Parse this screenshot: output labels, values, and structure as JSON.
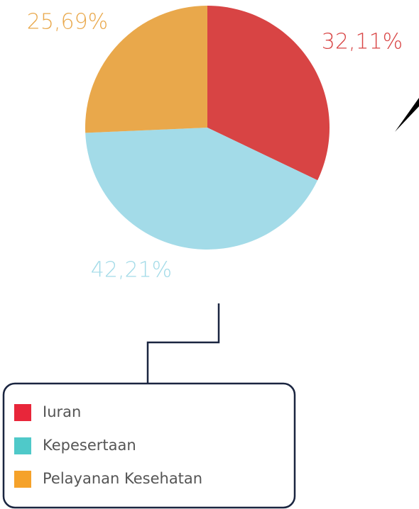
{
  "chart_data": {
    "type": "pie",
    "categories": [
      "Iuran",
      "Kepesertaan",
      "Pelayanan Kesehatan"
    ],
    "values": [
      32.11,
      42.21,
      25.69
    ],
    "value_labels": [
      "32,11%",
      "42,21%",
      "25,69%"
    ],
    "colors": [
      "#d84444",
      "#a3dbe8",
      "#e9a84b"
    ],
    "legend_colors": [
      "#e8263a",
      "#4fc9c9",
      "#f5a22a"
    ]
  }
}
